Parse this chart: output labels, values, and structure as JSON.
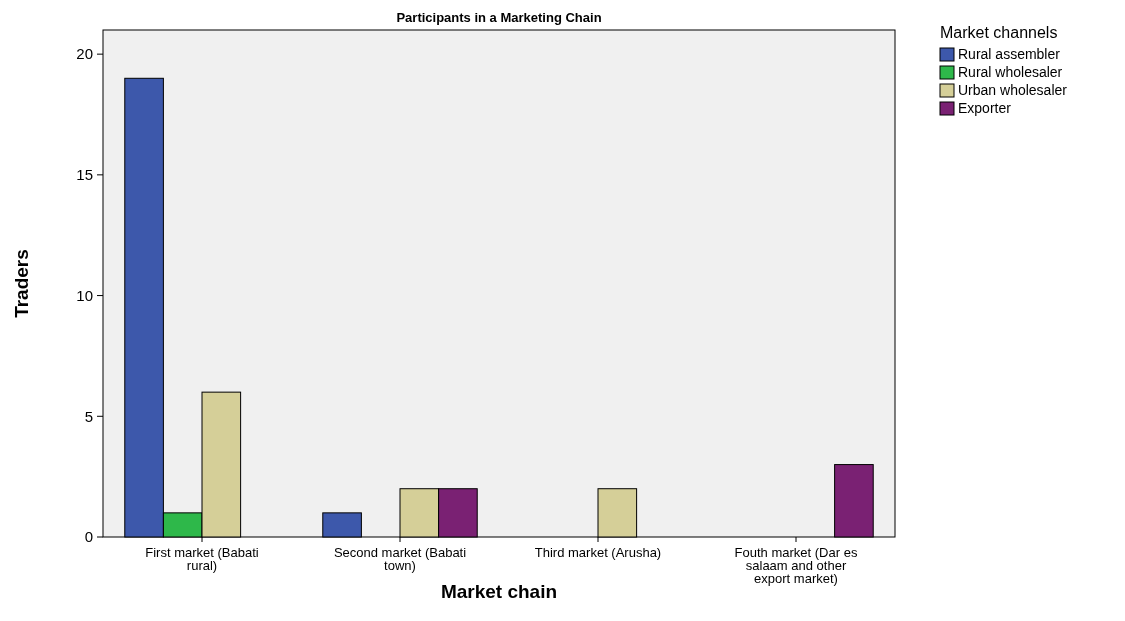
{
  "chart_data": {
    "type": "bar",
    "title": "Participants in a Marketing Chain",
    "xlabel": "Market chain",
    "ylabel": "Traders",
    "legend_title": "Market channels",
    "legend": "top right",
    "grid": false,
    "categories": [
      "First market (Babati rural)",
      "Second market (Babati town)",
      "Third market (Arusha)",
      "Fouth market (Dar es salaam and other export market)"
    ],
    "ylim": [
      0,
      21
    ],
    "yticks": [
      0,
      5,
      10,
      15,
      20
    ],
    "series": [
      {
        "name": "Rural assembler",
        "color": "#3d58ab",
        "values": [
          19,
          1,
          null,
          null
        ]
      },
      {
        "name": "Rural wholesaler",
        "color": "#2eb84a",
        "values": [
          1,
          null,
          null,
          null
        ]
      },
      {
        "name": "Urban wholesaler",
        "color": "#d5cf98",
        "values": [
          6,
          2,
          2,
          null
        ]
      },
      {
        "name": "Exporter",
        "color": "#7a2173",
        "values": [
          null,
          2,
          null,
          3
        ]
      }
    ]
  }
}
